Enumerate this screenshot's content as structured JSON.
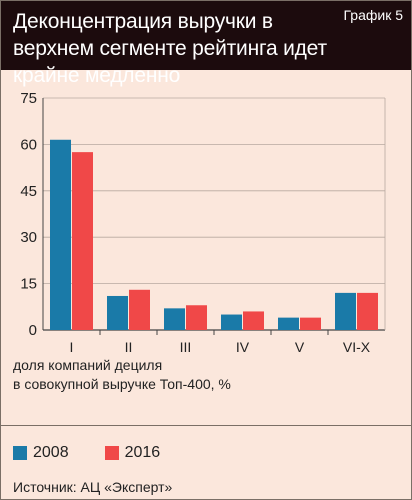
{
  "header": {
    "title": "Деконцентрация выручки в верхнем сегменте рейтинга идет крайне медленно",
    "tag": "График 5"
  },
  "note_lines": [
    "доля компаний дециля",
    "в совокупной выручке Топ-400, %"
  ],
  "source": "Источник: АЦ «Эксперт»",
  "chart_data": {
    "type": "bar",
    "categories": [
      "I",
      "II",
      "III",
      "IV",
      "V",
      "VI-X"
    ],
    "series": [
      {
        "name": "2008",
        "color": "#1a7aa8",
        "values": [
          61.5,
          11,
          7,
          5,
          4,
          12
        ]
      },
      {
        "name": "2016",
        "color": "#f04848",
        "values": [
          57.5,
          13,
          8,
          6,
          4,
          12
        ]
      }
    ],
    "ylim": [
      0,
      75
    ],
    "yticks": [
      0,
      15,
      30,
      45,
      60,
      75
    ],
    "ylabel": "доля компаний дециля в совокупной выручке Топ-400, %",
    "grid": true,
    "legend": "bottom-left"
  }
}
